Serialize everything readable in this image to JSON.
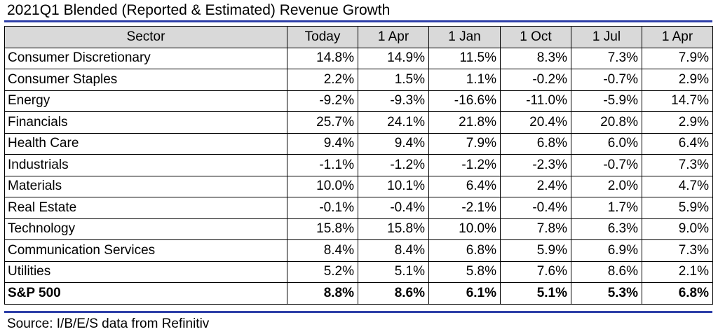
{
  "chart_data": {
    "type": "table",
    "title": "2021Q1 Blended (Reported & Estimated) Revenue Growth",
    "columns": [
      "Sector",
      "Today",
      "1 Apr",
      "1 Jan",
      "1 Oct",
      "1 Jul",
      "1 Apr"
    ],
    "rows": [
      {
        "sector": "Consumer Discretionary",
        "values": [
          "14.8%",
          "14.9%",
          "11.5%",
          "8.3%",
          "7.3%",
          "7.9%"
        ]
      },
      {
        "sector": "Consumer Staples",
        "values": [
          "2.2%",
          "1.5%",
          "1.1%",
          "-0.2%",
          "-0.7%",
          "2.9%"
        ]
      },
      {
        "sector": "Energy",
        "values": [
          "-9.2%",
          "-9.3%",
          "-16.6%",
          "-11.0%",
          "-5.9%",
          "14.7%"
        ]
      },
      {
        "sector": "Financials",
        "values": [
          "25.7%",
          "24.1%",
          "21.8%",
          "20.4%",
          "20.8%",
          "2.9%"
        ]
      },
      {
        "sector": "Health Care",
        "values": [
          "9.4%",
          "9.4%",
          "7.9%",
          "6.8%",
          "6.0%",
          "6.4%"
        ]
      },
      {
        "sector": "Industrials",
        "values": [
          "-1.1%",
          "-1.2%",
          "-1.2%",
          "-2.3%",
          "-0.7%",
          "7.3%"
        ]
      },
      {
        "sector": "Materials",
        "values": [
          "10.0%",
          "10.1%",
          "6.4%",
          "2.4%",
          "2.0%",
          "4.7%"
        ]
      },
      {
        "sector": "Real Estate",
        "values": [
          "-0.1%",
          "-0.4%",
          "-2.1%",
          "-0.4%",
          "1.7%",
          "5.9%"
        ]
      },
      {
        "sector": "Technology",
        "values": [
          "15.8%",
          "15.8%",
          "10.0%",
          "7.8%",
          "6.3%",
          "9.0%"
        ]
      },
      {
        "sector": "Communication Services",
        "values": [
          "8.4%",
          "8.4%",
          "6.8%",
          "5.9%",
          "6.9%",
          "7.3%"
        ]
      },
      {
        "sector": "Utilities",
        "values": [
          "5.2%",
          "5.1%",
          "5.8%",
          "7.6%",
          "8.6%",
          "2.1%"
        ]
      }
    ],
    "total": {
      "sector": "S&P 500",
      "values": [
        "8.8%",
        "8.6%",
        "6.1%",
        "5.1%",
        "5.3%",
        "6.8%"
      ]
    },
    "source": "Source: I/B/E/S data from Refinitiv"
  },
  "colors": {
    "rule": "#2e3fa8",
    "header_fill": "#d9d9d9",
    "grid_line": "#000000"
  }
}
